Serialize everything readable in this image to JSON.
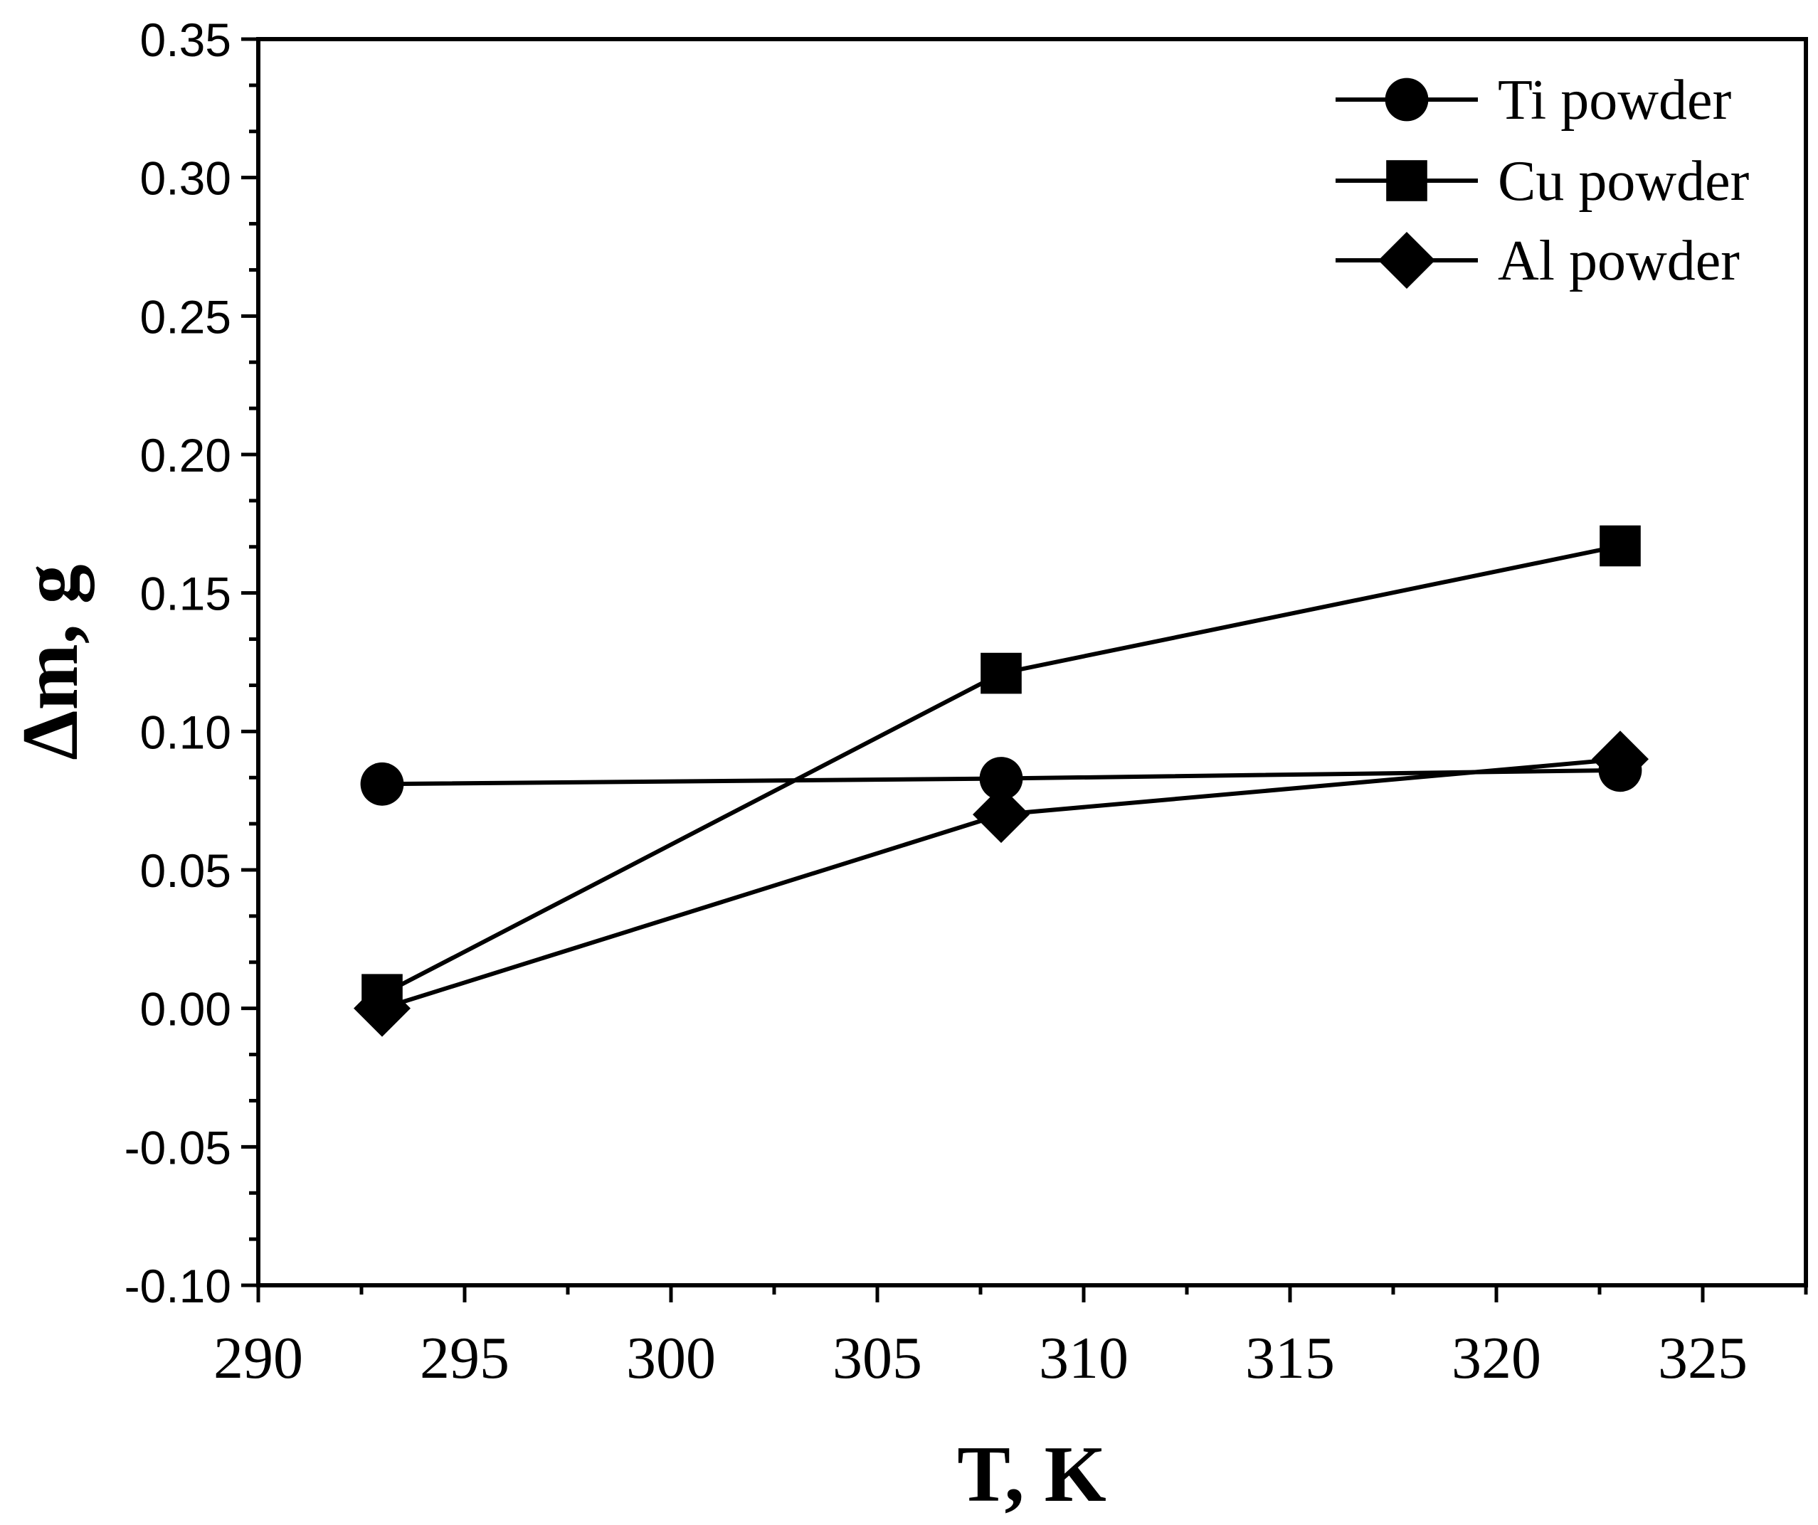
{
  "chart_data": {
    "type": "line",
    "title": "",
    "xlabel": "T, K",
    "ylabel": "Δm, g",
    "xlim": [
      290,
      327.5
    ],
    "ylim": [
      -0.1,
      0.35
    ],
    "xticks": [
      "290",
      "295",
      "300",
      "305",
      "310",
      "315",
      "320",
      "325"
    ],
    "yticks": [
      "-0.10",
      "-0.05",
      "0.00",
      "0.05",
      "0.10",
      "0.15",
      "0.20",
      "0.25",
      "0.30",
      "0.35"
    ],
    "grid": false,
    "legend_position": "top-right",
    "x": [
      293,
      308,
      323
    ],
    "series": [
      {
        "name": "Ti powder",
        "marker": "circle",
        "values": [
          0.081,
          0.083,
          0.086
        ]
      },
      {
        "name": "Cu powder",
        "marker": "square",
        "values": [
          0.005,
          0.121,
          0.167
        ]
      },
      {
        "name": "Al powder",
        "marker": "diamond",
        "values": [
          0.0,
          0.07,
          0.09
        ]
      }
    ]
  }
}
